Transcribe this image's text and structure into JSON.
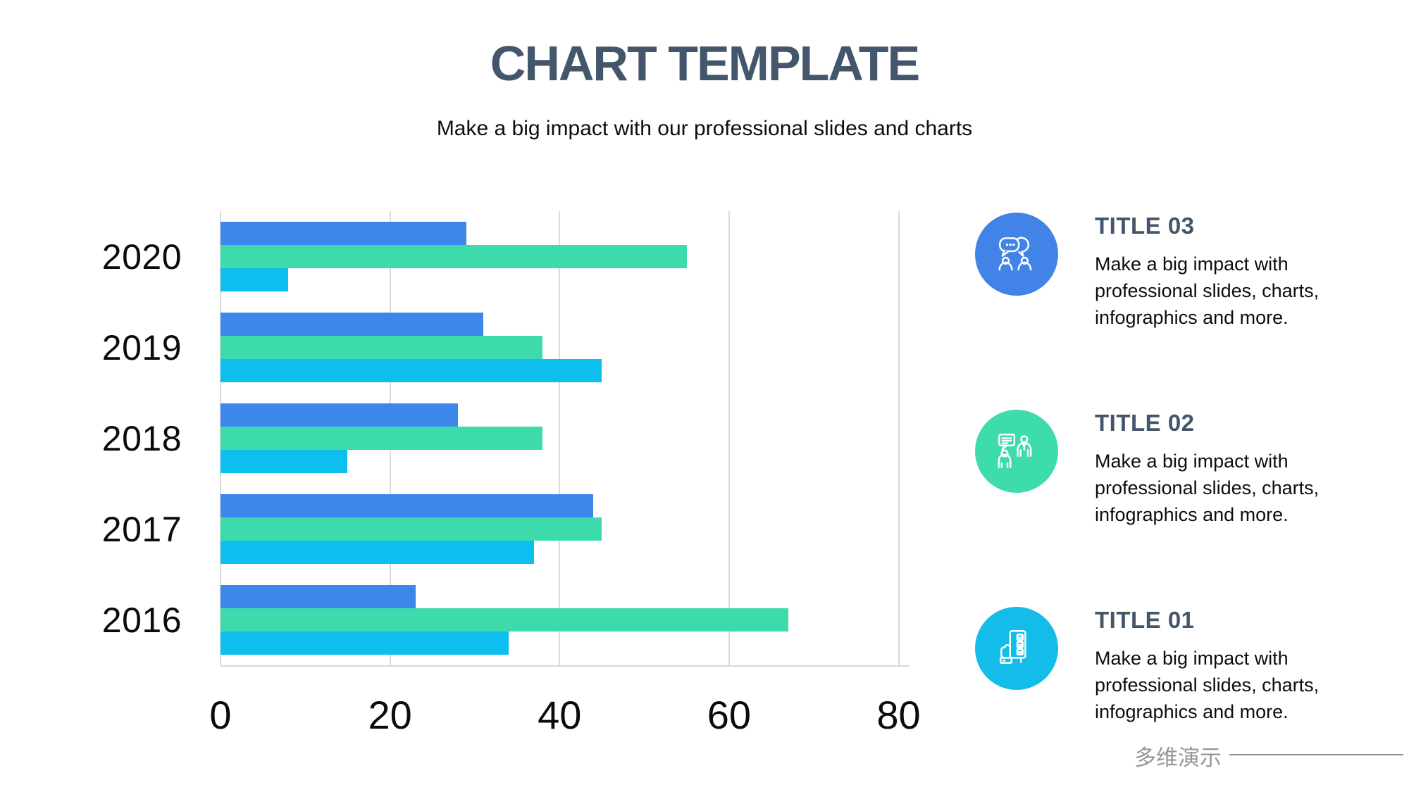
{
  "header": {
    "title": "CHART TEMPLATE",
    "subtitle": "Make a big impact with our professional slides and charts",
    "title_color": "#44566C"
  },
  "chart_data": {
    "type": "bar",
    "orientation": "horizontal",
    "title": "",
    "xlabel": "",
    "ylabel": "",
    "categories": [
      "2020",
      "2019",
      "2018",
      "2017",
      "2016"
    ],
    "series": [
      {
        "name": "blue",
        "color": "#3E87EA",
        "values": [
          29,
          31,
          28,
          44,
          23
        ]
      },
      {
        "name": "green",
        "color": "#3DDBAC",
        "values": [
          55,
          38,
          38,
          45,
          67
        ]
      },
      {
        "name": "cyan",
        "color": "#0DBFEF",
        "values": [
          8,
          45,
          15,
          37,
          34
        ]
      }
    ],
    "xlim": [
      0,
      80
    ],
    "xticks": [
      0,
      20,
      40,
      60,
      80
    ],
    "grid": true,
    "legend": "none"
  },
  "info_blocks": [
    {
      "title": "TITLE 03",
      "text": "Make a big impact with professional slides, charts, infographics and more.",
      "icon": "chat-people-icon",
      "circle_color": "#4183E6"
    },
    {
      "title": "TITLE 02",
      "text": "Make a big impact with professional slides, charts, infographics and more.",
      "icon": "presentation-people-icon",
      "circle_color": "#3EDBAD"
    },
    {
      "title": "TITLE 01",
      "text": "Make a big impact with professional slides, charts, infographics and more.",
      "icon": "checklist-hand-icon",
      "circle_color": "#14BCE9"
    }
  ],
  "footer": {
    "brand": "多维演示"
  }
}
